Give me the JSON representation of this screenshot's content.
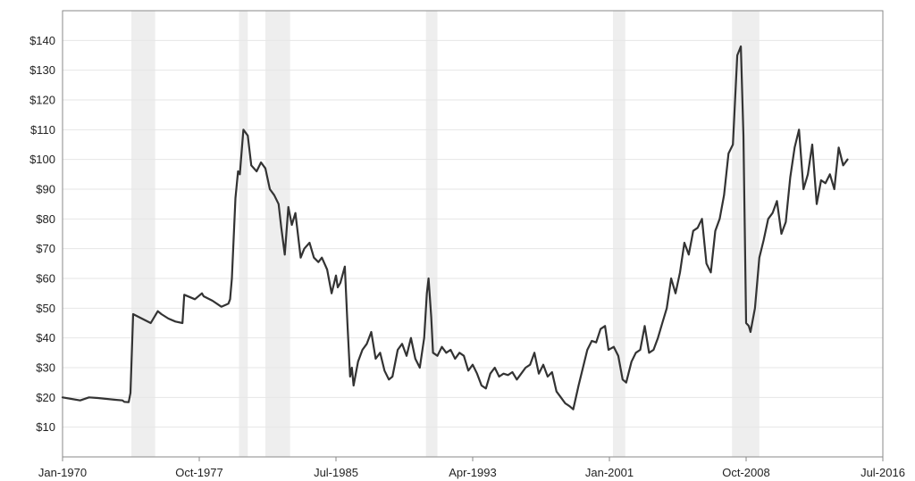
{
  "chart_data": {
    "type": "line",
    "title": "",
    "xlabel": "",
    "ylabel": "",
    "x_range": [
      1970.0,
      2016.5
    ],
    "ylim": [
      0,
      150
    ],
    "y_ticks": [
      10,
      20,
      30,
      40,
      50,
      60,
      70,
      80,
      90,
      100,
      110,
      120,
      130,
      140
    ],
    "y_tick_labels": [
      "$10",
      "$20",
      "$30",
      "$40",
      "$50",
      "$60",
      "$70",
      "$80",
      "$90",
      "$100",
      "$110",
      "$120",
      "$130",
      "$140"
    ],
    "x_ticks": [
      1970.0,
      1977.75,
      1985.5,
      1993.25,
      2001.0,
      2008.75,
      2016.5
    ],
    "x_tick_labels": [
      "Jan-1970",
      "Oct-1977",
      "Jul-1985",
      "Apr-1993",
      "Jan-2001",
      "Oct-2008",
      "Jul-2016"
    ],
    "grid": true,
    "line_color": "#333333",
    "band_color": "#eeeeee",
    "recession_bands": [
      [
        1973.9,
        1975.25
      ],
      [
        1980.0,
        1980.5
      ],
      [
        1981.5,
        1982.9
      ],
      [
        1990.6,
        1991.25
      ],
      [
        2001.2,
        2001.9
      ],
      [
        2007.95,
        2009.5
      ]
    ],
    "series": [
      {
        "x": [
          1970.0,
          1970.5,
          1971.0,
          1971.5,
          1972.0,
          1972.5,
          1973.0,
          1973.4,
          1973.5,
          1973.75,
          1973.85,
          1974.0,
          1974.5,
          1975.0,
          1975.4,
          1975.6,
          1976.0,
          1976.4,
          1976.8,
          1976.9,
          1977.5,
          1977.9,
          1978.0,
          1978.5,
          1979.0,
          1979.4,
          1979.5,
          1979.6,
          1979.8,
          1979.95,
          1980.05,
          1980.25,
          1980.5,
          1980.7,
          1981.0,
          1981.25,
          1981.5,
          1981.75,
          1982.0,
          1982.25,
          1982.4,
          1982.6,
          1982.8,
          1983.0,
          1983.2,
          1983.5,
          1983.7,
          1984.0,
          1984.25,
          1984.5,
          1984.7,
          1985.0,
          1985.25,
          1985.5,
          1985.6,
          1985.75,
          1986.0,
          1986.15,
          1986.3,
          1986.4,
          1986.5,
          1986.75,
          1987.0,
          1987.25,
          1987.5,
          1987.75,
          1988.0,
          1988.25,
          1988.5,
          1988.7,
          1989.0,
          1989.25,
          1989.5,
          1989.75,
          1990.0,
          1990.25,
          1990.5,
          1990.65,
          1990.75,
          1990.9,
          1991.0,
          1991.25,
          1991.5,
          1991.75,
          1992.0,
          1992.25,
          1992.5,
          1992.75,
          1993.0,
          1993.25,
          1993.5,
          1993.75,
          1994.0,
          1994.25,
          1994.5,
          1994.75,
          1995.0,
          1995.25,
          1995.5,
          1995.75,
          1996.0,
          1996.25,
          1996.5,
          1996.75,
          1997.0,
          1997.25,
          1997.5,
          1997.75,
          1998.0,
          1998.25,
          1998.5,
          1998.75,
          1998.95,
          1999.25,
          1999.5,
          1999.75,
          2000.0,
          2000.25,
          2000.5,
          2000.75,
          2000.95,
          2001.25,
          2001.5,
          2001.75,
          2001.95,
          2002.25,
          2002.5,
          2002.75,
          2003.0,
          2003.25,
          2003.5,
          2003.75,
          2004.0,
          2004.25,
          2004.5,
          2004.75,
          2005.0,
          2005.25,
          2005.5,
          2005.75,
          2006.0,
          2006.25,
          2006.5,
          2006.75,
          2007.0,
          2007.25,
          2007.5,
          2007.75,
          2008.0,
          2008.25,
          2008.45,
          2008.6,
          2008.75,
          2008.9,
          2009.0,
          2009.25,
          2009.5,
          2009.75,
          2010.0,
          2010.25,
          2010.5,
          2010.75,
          2011.0,
          2011.25,
          2011.5,
          2011.75,
          2012.0,
          2012.25,
          2012.5,
          2012.75,
          2013.0,
          2013.25,
          2013.5,
          2013.75,
          2014.0,
          2014.25,
          2014.5
        ],
        "y": [
          20.0,
          19.5,
          19.0,
          20.0,
          19.8,
          19.5,
          19.2,
          19.0,
          18.5,
          18.4,
          21.5,
          48.0,
          46.5,
          45.0,
          49.0,
          48.0,
          46.5,
          45.5,
          45.0,
          54.5,
          53.0,
          55.0,
          54.0,
          52.5,
          50.5,
          51.5,
          53.0,
          60.0,
          87.0,
          96.0,
          95.0,
          110.0,
          108.0,
          98.0,
          96.0,
          99.0,
          97.0,
          90.0,
          88.0,
          85.0,
          77.0,
          68.0,
          84.0,
          78.0,
          82.0,
          67.0,
          70.0,
          72.0,
          67.0,
          65.5,
          67.0,
          63.0,
          55.0,
          61.0,
          57.0,
          58.5,
          64.0,
          45.0,
          27.0,
          30.0,
          24.0,
          32.0,
          36.0,
          38.0,
          42.0,
          33.0,
          35.0,
          29.0,
          26.0,
          27.0,
          36.0,
          38.0,
          34.0,
          40.0,
          33.0,
          30.0,
          40.0,
          55.0,
          60.0,
          47.0,
          35.0,
          34.0,
          37.0,
          35.0,
          36.0,
          33.0,
          35.0,
          34.0,
          29.0,
          31.0,
          28.0,
          24.0,
          23.0,
          28.0,
          30.0,
          27.0,
          28.0,
          27.5,
          28.5,
          26.0,
          28.0,
          30.0,
          31.0,
          35.0,
          28.0,
          31.0,
          27.0,
          28.5,
          22.0,
          20.0,
          18.0,
          17.0,
          16.0,
          24.0,
          30.0,
          36.0,
          39.0,
          38.5,
          43.0,
          44.0,
          36.0,
          37.0,
          34.0,
          26.0,
          25.0,
          32.0,
          35.0,
          36.0,
          44.0,
          35.0,
          36.0,
          40.0,
          45.0,
          50.0,
          60.0,
          55.0,
          62.0,
          72.0,
          68.0,
          76.0,
          77.0,
          80.0,
          65.0,
          62.0,
          76.0,
          80.0,
          88.0,
          102.0,
          105.0,
          135.0,
          138.0,
          108.0,
          45.0,
          44.0,
          42.0,
          50.0,
          67.0,
          73.0,
          80.0,
          82.0,
          86.0,
          75.0,
          79.0,
          94.0,
          104.0,
          110.0,
          90.0,
          95.0,
          105.0,
          85.0,
          93.0,
          92.0,
          95.0,
          90.0,
          104.0,
          98.0,
          100.0
        ]
      }
    ]
  }
}
